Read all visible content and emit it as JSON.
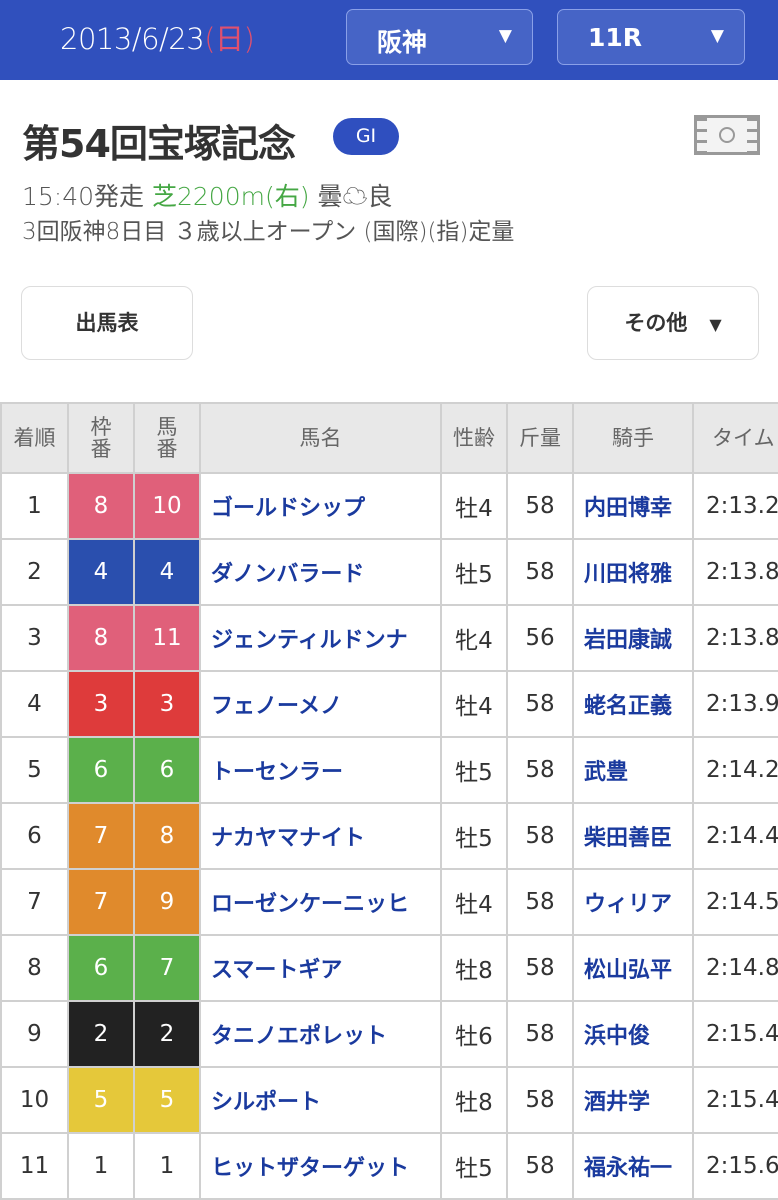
{
  "header": {
    "date": "2013/6/23",
    "weekday": "(日)",
    "venue": "阪神",
    "race": "11R",
    "dropdown_icon": "triangle-down"
  },
  "race": {
    "title": "第54回宝塚記念",
    "grade": "GI",
    "start": "15:40発走",
    "course": "芝2200m(右)",
    "weather": "曇",
    "weather_icon": "cloud",
    "going": "良",
    "conditions": "3回阪神8日目 ３歳以上オープン (国際)(指)定量",
    "course_color": "#45a744"
  },
  "buttons": {
    "entries": "出馬表",
    "other": "その他"
  },
  "table": {
    "headers": {
      "rank": "着順",
      "frame": "枠\n番",
      "number": "馬\n番",
      "name": "馬名",
      "sexage": "性齢",
      "weight": "斤量",
      "jockey": "騎手",
      "time": "タイム"
    },
    "rows": [
      {
        "rank": "1",
        "frame": "8",
        "number": "10",
        "name": "ゴールドシップ",
        "sexage": "牡4",
        "weight": "58",
        "jockey": "内田博幸",
        "time": "2:13.2",
        "color": "#e0607a"
      },
      {
        "rank": "2",
        "frame": "4",
        "number": "4",
        "name": "ダノンバラード",
        "sexage": "牡5",
        "weight": "58",
        "jockey": "川田将雅",
        "time": "2:13.8",
        "color": "#2a4fae"
      },
      {
        "rank": "3",
        "frame": "8",
        "number": "11",
        "name": "ジェンティルドンナ",
        "sexage": "牝4",
        "weight": "56",
        "jockey": "岩田康誠",
        "time": "2:13.8",
        "color": "#e0607a"
      },
      {
        "rank": "4",
        "frame": "3",
        "number": "3",
        "name": "フェノーメノ",
        "sexage": "牡4",
        "weight": "58",
        "jockey": "蛯名正義",
        "time": "2:13.9",
        "color": "#de3b3b"
      },
      {
        "rank": "5",
        "frame": "6",
        "number": "6",
        "name": "トーセンラー",
        "sexage": "牡5",
        "weight": "58",
        "jockey": "武豊",
        "time": "2:14.2",
        "color": "#5bb04b"
      },
      {
        "rank": "6",
        "frame": "7",
        "number": "8",
        "name": "ナカヤマナイト",
        "sexage": "牡5",
        "weight": "58",
        "jockey": "柴田善臣",
        "time": "2:14.4",
        "color": "#e08a2c"
      },
      {
        "rank": "7",
        "frame": "7",
        "number": "9",
        "name": "ローゼンケーニッヒ",
        "sexage": "牡4",
        "weight": "58",
        "jockey": "ウィリア",
        "time": "2:14.5",
        "color": "#e08a2c"
      },
      {
        "rank": "8",
        "frame": "6",
        "number": "7",
        "name": "スマートギア",
        "sexage": "牡8",
        "weight": "58",
        "jockey": "松山弘平",
        "time": "2:14.8",
        "color": "#5bb04b"
      },
      {
        "rank": "9",
        "frame": "2",
        "number": "2",
        "name": "タニノエポレット",
        "sexage": "牡6",
        "weight": "58",
        "jockey": "浜中俊",
        "time": "2:15.4",
        "color": "#222222"
      },
      {
        "rank": "10",
        "frame": "5",
        "number": "5",
        "name": "シルポート",
        "sexage": "牡8",
        "weight": "58",
        "jockey": "酒井学",
        "time": "2:15.4",
        "color": "#e5c83a"
      },
      {
        "rank": "11",
        "frame": "1",
        "number": "1",
        "name": "ヒットザターゲット",
        "sexage": "牡5",
        "weight": "58",
        "jockey": "福永祐一",
        "time": "2:15.6",
        "color": "#ffffff"
      }
    ]
  }
}
